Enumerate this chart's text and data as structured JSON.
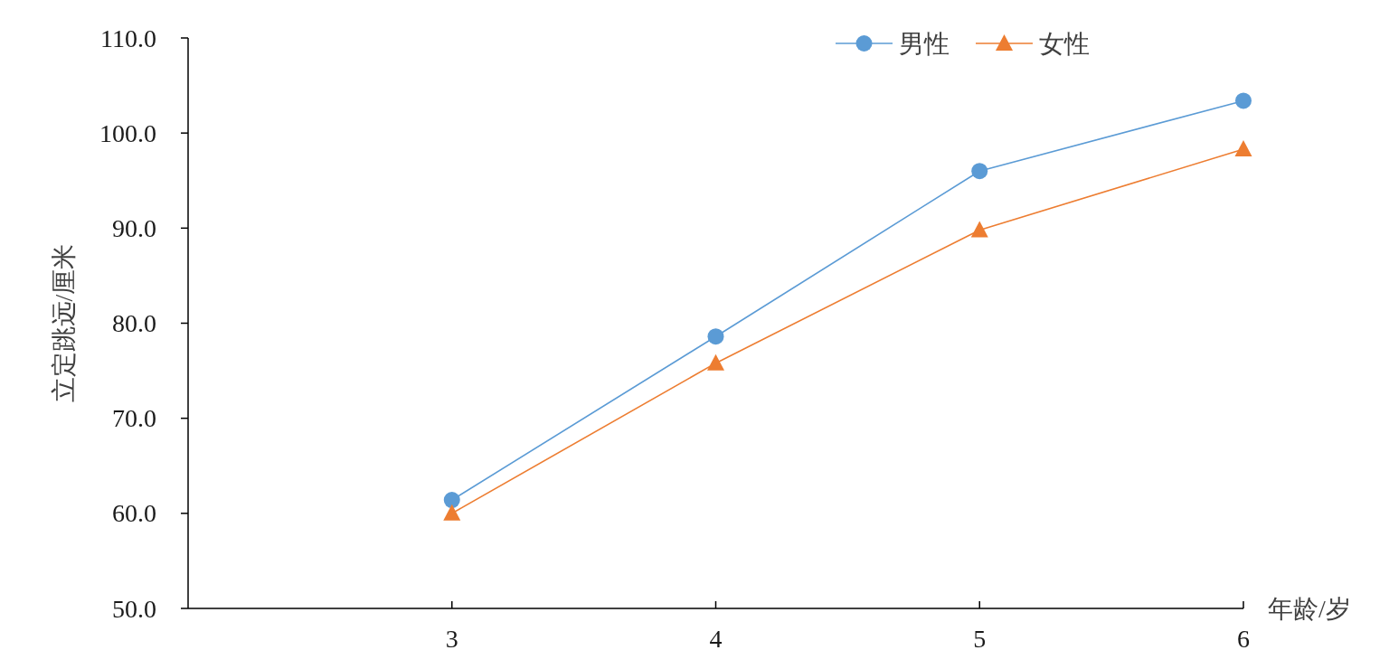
{
  "chart_data": {
    "type": "line",
    "xlabel": "年龄/岁",
    "ylabel": "立定跳远/厘米",
    "x": [
      3,
      4,
      5,
      6
    ],
    "series": [
      {
        "name": "男性",
        "color": "#5b9bd5",
        "marker": "circle",
        "values": [
          61.4,
          78.6,
          96.0,
          103.4
        ]
      },
      {
        "name": "女性",
        "color": "#ed7d31",
        "marker": "triangle",
        "values": [
          60.0,
          75.8,
          89.8,
          98.3
        ]
      }
    ],
    "xlim": [
      2,
      6
    ],
    "xticks": [
      3,
      4,
      5,
      6
    ],
    "ylim": [
      50,
      110
    ],
    "yticks": [
      {
        "value": 50,
        "label": "50.0"
      },
      {
        "value": 60,
        "label": "60.0"
      },
      {
        "value": 70,
        "label": "70.0"
      },
      {
        "value": 80,
        "label": "80.0"
      },
      {
        "value": 90,
        "label": "90.0"
      },
      {
        "value": 100,
        "label": "100.0"
      },
      {
        "value": 110,
        "label": "110.0"
      }
    ],
    "grid": false,
    "legend": "top right",
    "line_style": "solid"
  }
}
